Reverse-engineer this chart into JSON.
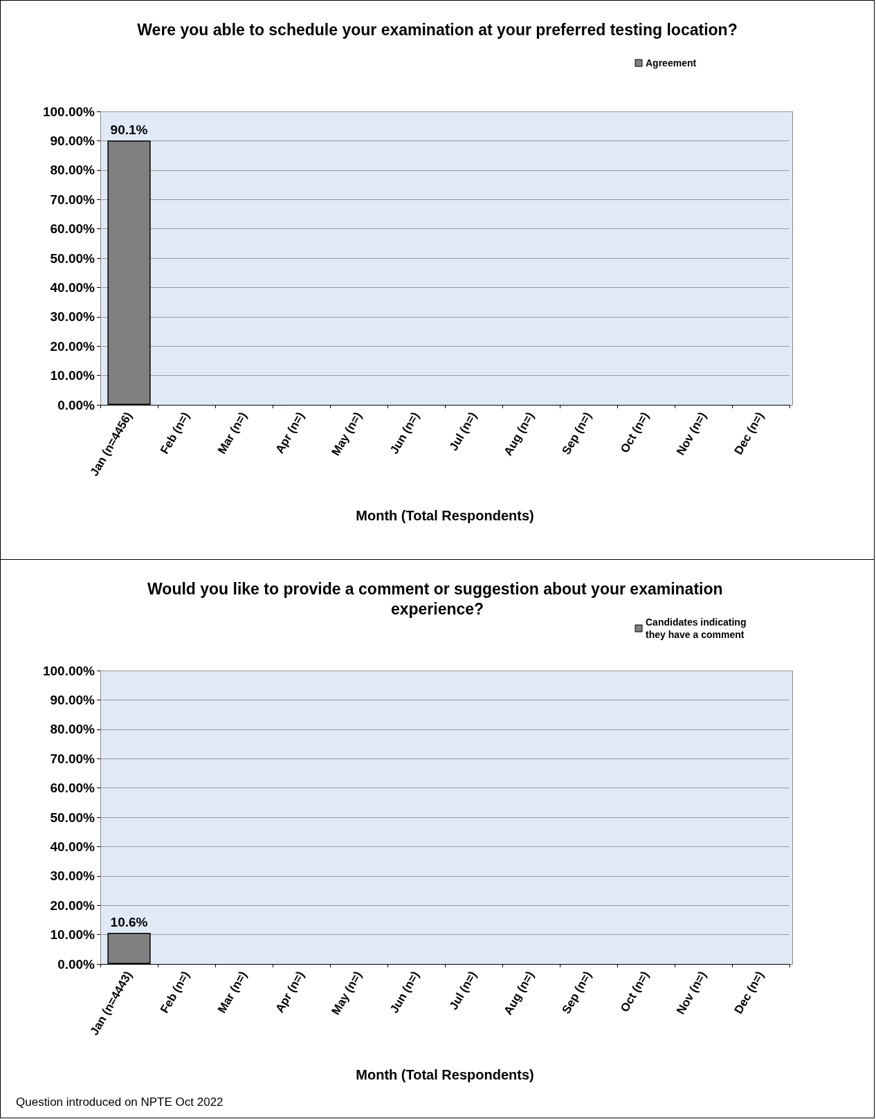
{
  "chart_data": [
    {
      "type": "bar",
      "title": "Were you able to schedule your examination at your preferred testing location?",
      "xlabel": "Month (Total Respondents)",
      "categories": [
        "Jan (n=4456)",
        "Feb (n=)",
        "Mar (n=)",
        "Apr (n=)",
        "May (n=)",
        "Jun (n=)",
        "Jul (n=)",
        "Aug (n=)",
        "Sep (n=)",
        "Oct (n=)",
        "Nov (n=)",
        "Dec (n=)"
      ],
      "series": [
        {
          "name": "Agreement",
          "color": "#808080",
          "values": [
            90.1,
            null,
            null,
            null,
            null,
            null,
            null,
            null,
            null,
            null,
            null,
            null
          ],
          "value_labels": [
            "90.1%",
            null,
            null,
            null,
            null,
            null,
            null,
            null,
            null,
            null,
            null,
            null
          ]
        }
      ],
      "ylim": [
        0,
        100
      ],
      "yticks": [
        {
          "value": 0,
          "label": "0.00%"
        },
        {
          "value": 10,
          "label": "10.00%"
        },
        {
          "value": 20,
          "label": "20.00%"
        },
        {
          "value": 30,
          "label": "30.00%"
        },
        {
          "value": 40,
          "label": "40.00%"
        },
        {
          "value": 50,
          "label": "50.00%"
        },
        {
          "value": 60,
          "label": "60.00%"
        },
        {
          "value": 70,
          "label": "70.00%"
        },
        {
          "value": 80,
          "label": "80.00%"
        },
        {
          "value": 90,
          "label": "90.00%"
        },
        {
          "value": 100,
          "label": "100.00%"
        }
      ],
      "grid": "y",
      "legend": "top right"
    },
    {
      "type": "bar",
      "title": "Would you like to provide a comment or suggestion about your examination experience?",
      "xlabel": "Month (Total Respondents)",
      "categories": [
        "Jan (n=4443)",
        "Feb (n=)",
        "Mar (n=)",
        "Apr (n=)",
        "May (n=)",
        "Jun (n=)",
        "Jul (n=)",
        "Aug (n=)",
        "Sep (n=)",
        "Oct (n=)",
        "Nov (n=)",
        "Dec (n=)"
      ],
      "series": [
        {
          "name": "Candidates indicating they have a comment",
          "color": "#808080",
          "values": [
            10.6,
            null,
            null,
            null,
            null,
            null,
            null,
            null,
            null,
            null,
            null,
            null
          ],
          "value_labels": [
            "10.6%",
            null,
            null,
            null,
            null,
            null,
            null,
            null,
            null,
            null,
            null,
            null
          ]
        }
      ],
      "ylim": [
        0,
        100
      ],
      "yticks": [
        {
          "value": 0,
          "label": "0.00%"
        },
        {
          "value": 10,
          "label": "10.00%"
        },
        {
          "value": 20,
          "label": "20.00%"
        },
        {
          "value": 30,
          "label": "30.00%"
        },
        {
          "value": 40,
          "label": "40.00%"
        },
        {
          "value": 50,
          "label": "50.00%"
        },
        {
          "value": 60,
          "label": "60.00%"
        },
        {
          "value": 70,
          "label": "70.00%"
        },
        {
          "value": 80,
          "label": "80.00%"
        },
        {
          "value": 90,
          "label": "90.00%"
        },
        {
          "value": 100,
          "label": "100.00%"
        }
      ],
      "grid": "y",
      "legend": "top right",
      "annotations": [
        "Question introduced on NPTE Oct 2022"
      ]
    }
  ]
}
